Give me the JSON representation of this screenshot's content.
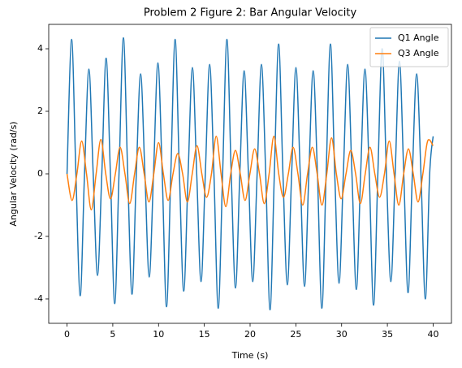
{
  "chart_data": {
    "type": "line",
    "title": "Problem 2 Figure 2: Bar Angular Velocity",
    "xlabel": "Time (s)",
    "ylabel": "Angular Velocity (rad/s)",
    "xlim": [
      -2,
      42
    ],
    "ylim": [
      -4.78,
      4.78
    ],
    "xticks": [
      0,
      5,
      10,
      15,
      20,
      25,
      30,
      35,
      40
    ],
    "yticks": [
      -4,
      -2,
      0,
      2,
      4
    ],
    "grid": false,
    "legend": "upper right",
    "series": [
      {
        "name": "Q1 Angle",
        "color": "#1f77b4",
        "x": [
          0,
          0.5,
          0.97,
          1.44,
          1.91,
          2.39,
          2.86,
          3.33,
          3.8,
          4.27,
          4.74,
          5.21,
          5.68,
          6.16,
          6.63,
          7.1,
          7.57,
          8.04,
          8.51,
          8.98,
          9.45,
          9.93,
          10.4,
          10.87,
          11.34,
          11.81,
          12.28,
          12.75,
          13.23,
          13.7,
          14.17,
          14.64,
          15.11,
          15.58,
          16.05,
          16.52,
          17.0,
          17.47,
          17.94,
          18.41,
          18.88,
          19.35,
          19.82,
          20.29,
          20.77,
          21.24,
          21.71,
          22.18,
          22.65,
          23.12,
          23.59,
          24.07,
          24.54,
          25.01,
          25.48,
          25.95,
          26.42,
          26.89,
          27.36,
          27.84,
          28.31,
          28.78,
          29.25,
          29.72,
          30.19,
          30.66,
          31.13,
          31.61,
          32.08,
          32.55,
          33.02,
          33.49,
          33.96,
          34.43,
          34.9,
          35.38,
          35.85,
          36.32,
          36.79,
          37.26,
          37.73,
          38.2,
          38.67,
          39.15,
          39.62,
          40
        ],
        "values": [
          0,
          4.3,
          0,
          -3.9,
          0,
          3.35,
          0,
          -3.25,
          0,
          3.7,
          0,
          -4.15,
          0,
          4.35,
          0,
          -3.85,
          0,
          3.2,
          0,
          -3.3,
          0,
          3.55,
          0,
          -4.25,
          0,
          4.3,
          0,
          -3.75,
          0,
          3.4,
          0,
          -3.45,
          0,
          3.5,
          0,
          -4.3,
          0,
          4.3,
          0,
          -3.65,
          0,
          3.3,
          0,
          -3.45,
          0,
          3.5,
          0,
          -4.35,
          0,
          4.15,
          0,
          -3.55,
          0,
          3.4,
          0,
          -3.6,
          0,
          3.3,
          0,
          -4.3,
          0,
          4.15,
          0,
          -3.5,
          0,
          3.5,
          0,
          -3.7,
          0,
          3.35,
          0,
          -4.2,
          0,
          4.0,
          0,
          -3.45,
          0,
          3.6,
          0,
          -3.8,
          0,
          3.2,
          0,
          -4.0,
          0,
          1.2
        ]
      },
      {
        "name": "Q3 Angle",
        "color": "#ff7f0e",
        "x": [
          0,
          0.55,
          1.08,
          1.6,
          2.13,
          2.65,
          3.18,
          3.7,
          4.23,
          4.75,
          5.28,
          5.8,
          6.33,
          6.85,
          7.38,
          7.9,
          8.43,
          8.95,
          9.48,
          10.0,
          10.53,
          11.05,
          11.58,
          12.1,
          12.63,
          13.15,
          13.68,
          14.2,
          14.73,
          15.25,
          15.78,
          16.3,
          16.83,
          17.35,
          17.88,
          18.4,
          18.93,
          19.45,
          19.98,
          20.5,
          21.03,
          21.55,
          22.08,
          22.6,
          23.13,
          23.65,
          24.18,
          24.7,
          25.23,
          25.75,
          26.28,
          26.8,
          27.33,
          27.85,
          28.38,
          28.9,
          29.43,
          29.95,
          30.48,
          31.0,
          31.53,
          32.05,
          32.58,
          33.1,
          33.63,
          34.15,
          34.68,
          35.2,
          35.73,
          36.25,
          36.78,
          37.3,
          37.83,
          38.35,
          38.88,
          39.4,
          40
        ],
        "values": [
          0,
          -0.85,
          0,
          1.05,
          0,
          -1.15,
          0,
          1.1,
          0,
          -0.8,
          0,
          0.85,
          0,
          -0.95,
          0,
          0.85,
          0,
          -0.9,
          0,
          1.0,
          0,
          -0.85,
          0,
          0.65,
          0,
          -0.9,
          0,
          0.9,
          0,
          -0.75,
          0,
          1.2,
          0,
          -1.05,
          0,
          0.75,
          0,
          -0.85,
          0,
          0.8,
          0,
          -0.95,
          0,
          1.2,
          0,
          -0.75,
          0,
          0.85,
          0,
          -1.0,
          0,
          0.85,
          0,
          -1.0,
          0,
          1.15,
          0,
          -0.8,
          0,
          0.75,
          0,
          -0.95,
          0,
          0.85,
          0,
          -0.75,
          0,
          1.05,
          0,
          -1.0,
          0,
          0.8,
          0,
          -0.9,
          0,
          1.05,
          0.9
        ]
      }
    ]
  }
}
